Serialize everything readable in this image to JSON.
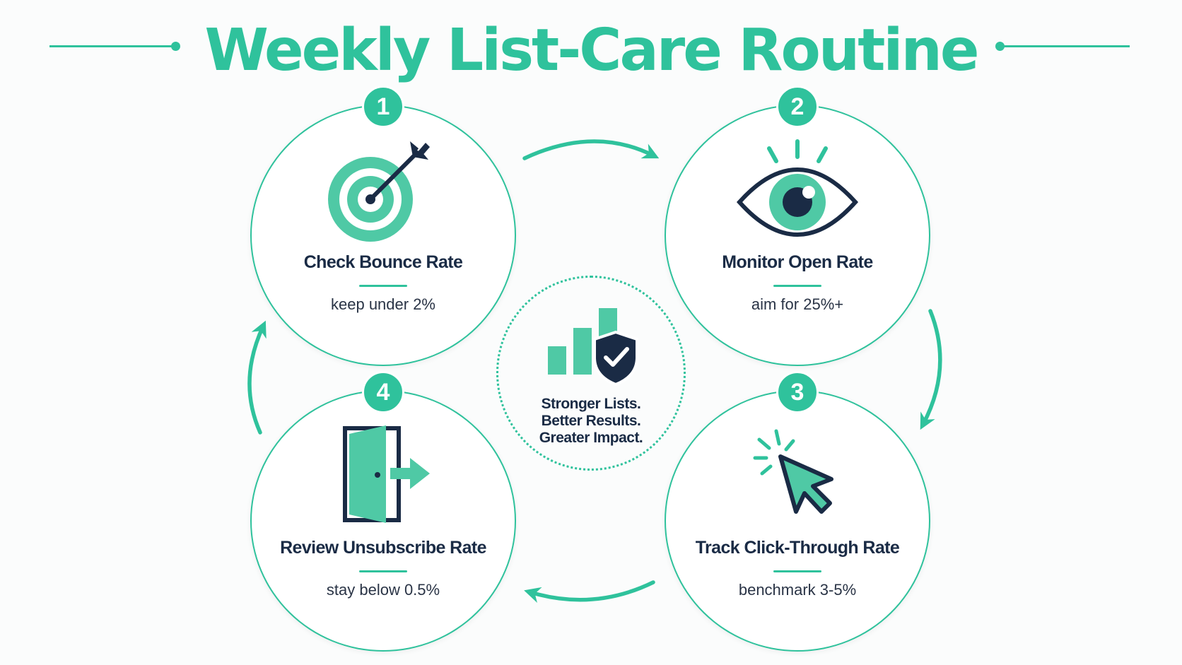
{
  "title": "Weekly List-Care Routine",
  "steps": [
    {
      "number": "1",
      "label": "Check Bounce Rate",
      "description": "keep under 2%",
      "icon": "target-arrow-icon"
    },
    {
      "number": "2",
      "label": "Monitor Open Rate",
      "description": "aim for 25%+",
      "icon": "eye-icon"
    },
    {
      "number": "3",
      "label": "Track Click-Through Rate",
      "description": "benchmark 3-5%",
      "icon": "cursor-click-icon"
    },
    {
      "number": "4",
      "label": "Review Unsubscribe Rate",
      "description": "stay below 0.5%",
      "icon": "door-exit-icon"
    }
  ],
  "center": {
    "lines": [
      "Stronger Lists.",
      "Better Results.",
      "Greater Impact."
    ],
    "icon": "bar-chart-shield-check-icon"
  },
  "colors": {
    "accent": "#2fc29c",
    "accent_light": "#4fc9a5",
    "navy": "#1a2b45",
    "text": "#2a3446",
    "background": "#fbfcfc"
  }
}
